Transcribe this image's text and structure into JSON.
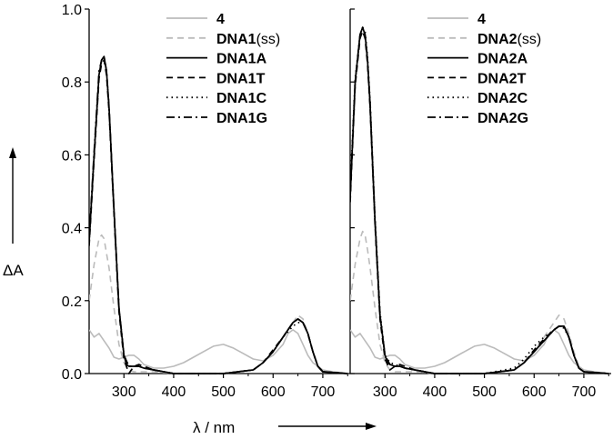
{
  "chart_data": [
    {
      "type": "line",
      "panel": "left",
      "xlabel": "λ / nm",
      "ylabel": "ΔA",
      "xlim": [
        230,
        755
      ],
      "ylim": [
        0,
        1.0
      ],
      "xticks": [
        300,
        400,
        500,
        600,
        700
      ],
      "yticks": [
        0.0,
        0.2,
        0.4,
        0.6,
        0.8,
        1.0
      ],
      "legend_position": "top-right",
      "series": [
        {
          "name": "4",
          "name_suffix": "",
          "color": "#bbbbbb",
          "dash": "solid",
          "x": [
            230,
            240,
            250,
            260,
            270,
            280,
            290,
            300,
            310,
            320,
            330,
            340,
            360,
            380,
            400,
            420,
            440,
            460,
            480,
            500,
            520,
            540,
            560,
            580,
            600,
            620,
            630,
            640,
            650,
            660,
            670,
            680,
            700,
            720,
            750
          ],
          "y": [
            0.12,
            0.1,
            0.11,
            0.09,
            0.07,
            0.045,
            0.04,
            0.045,
            0.05,
            0.05,
            0.04,
            0.025,
            0.015,
            0.015,
            0.02,
            0.03,
            0.045,
            0.06,
            0.075,
            0.08,
            0.07,
            0.055,
            0.04,
            0.035,
            0.05,
            0.08,
            0.11,
            0.12,
            0.11,
            0.08,
            0.05,
            0.03,
            0.01,
            0.005,
            0.0
          ]
        },
        {
          "name": "DNA1",
          "name_suffix": " (ss)",
          "color": "#bbbbbb",
          "dash": "dashed",
          "x": [
            230,
            240,
            250,
            255,
            260,
            265,
            270,
            280,
            290,
            300,
            310,
            320,
            340,
            360,
            400,
            500,
            560,
            580,
            600,
            620,
            640,
            650,
            660,
            670,
            680,
            690,
            700,
            750
          ],
          "y": [
            0.2,
            0.3,
            0.37,
            0.38,
            0.37,
            0.33,
            0.29,
            0.18,
            0.08,
            0.03,
            0.01,
            0.005,
            0.005,
            0.005,
            0.0,
            0.0,
            0.01,
            0.03,
            0.06,
            0.1,
            0.14,
            0.16,
            0.15,
            0.11,
            0.06,
            0.02,
            0.005,
            0.0
          ]
        },
        {
          "name": "DNA1A",
          "name_suffix": "",
          "color": "#000000",
          "dash": "solid",
          "x": [
            230,
            240,
            250,
            255,
            260,
            265,
            270,
            280,
            290,
            300,
            305,
            310,
            320,
            330,
            340,
            360,
            380,
            400,
            500,
            560,
            580,
            600,
            620,
            640,
            650,
            660,
            670,
            680,
            690,
            700,
            750
          ],
          "y": [
            0.36,
            0.6,
            0.82,
            0.86,
            0.87,
            0.83,
            0.73,
            0.45,
            0.18,
            0.05,
            0.025,
            0.02,
            0.02,
            0.02,
            0.015,
            0.01,
            0.005,
            0.0,
            0.0,
            0.01,
            0.03,
            0.06,
            0.1,
            0.14,
            0.15,
            0.14,
            0.11,
            0.06,
            0.02,
            0.005,
            0.0
          ]
        },
        {
          "name": "DNA1T",
          "name_suffix": "",
          "color": "#000000",
          "dash": "dashed",
          "x": [
            230,
            240,
            250,
            255,
            260,
            265,
            270,
            280,
            290,
            300,
            310,
            320,
            330,
            340,
            360,
            400,
            500,
            560,
            580,
            600,
            620,
            640,
            650,
            660,
            670,
            680,
            690,
            700,
            750
          ],
          "y": [
            0.35,
            0.59,
            0.81,
            0.85,
            0.86,
            0.82,
            0.72,
            0.44,
            0.17,
            0.04,
            0.0,
            0.02,
            0.025,
            0.02,
            0.01,
            0.0,
            0.0,
            0.01,
            0.03,
            0.065,
            0.1,
            0.14,
            0.15,
            0.14,
            0.11,
            0.06,
            0.02,
            0.005,
            0.0
          ]
        },
        {
          "name": "DNA1C",
          "name_suffix": "",
          "color": "#000000",
          "dash": "dotted",
          "x": [
            230,
            240,
            250,
            255,
            260,
            265,
            270,
            280,
            290,
            300,
            310,
            320,
            330,
            340,
            360,
            400,
            500,
            560,
            580,
            600,
            620,
            640,
            650,
            660,
            670,
            680,
            690,
            700,
            750
          ],
          "y": [
            0.36,
            0.6,
            0.82,
            0.86,
            0.87,
            0.83,
            0.73,
            0.45,
            0.18,
            0.05,
            0.02,
            0.02,
            0.02,
            0.015,
            0.01,
            0.0,
            0.0,
            0.01,
            0.03,
            0.06,
            0.1,
            0.13,
            0.14,
            0.14,
            0.11,
            0.06,
            0.02,
            0.005,
            0.0
          ]
        },
        {
          "name": "DNA1G",
          "name_suffix": "",
          "color": "#000000",
          "dash": "dashdot",
          "x": [
            230,
            240,
            250,
            255,
            260,
            265,
            270,
            280,
            290,
            300,
            310,
            320,
            330,
            340,
            360,
            400,
            500,
            560,
            580,
            600,
            620,
            640,
            650,
            660,
            670,
            680,
            690,
            700,
            750
          ],
          "y": [
            0.37,
            0.61,
            0.83,
            0.86,
            0.87,
            0.83,
            0.73,
            0.45,
            0.18,
            0.05,
            0.02,
            0.02,
            0.02,
            0.015,
            0.01,
            0.0,
            0.0,
            0.01,
            0.03,
            0.06,
            0.1,
            0.14,
            0.15,
            0.14,
            0.11,
            0.06,
            0.02,
            0.005,
            0.0
          ]
        }
      ]
    },
    {
      "type": "line",
      "panel": "right",
      "xlabel": "λ / nm",
      "ylabel": "ΔA",
      "xlim": [
        230,
        755
      ],
      "ylim": [
        0,
        1.0
      ],
      "xticks": [
        300,
        400,
        500,
        600,
        700
      ],
      "yticks": [
        0.0,
        0.2,
        0.4,
        0.6,
        0.8,
        1.0
      ],
      "legend_position": "top-right",
      "series": [
        {
          "name": "4",
          "name_suffix": "",
          "color": "#bbbbbb",
          "dash": "solid",
          "x": [
            230,
            240,
            250,
            260,
            270,
            280,
            290,
            300,
            310,
            320,
            330,
            340,
            360,
            380,
            400,
            420,
            440,
            460,
            480,
            500,
            520,
            540,
            560,
            580,
            600,
            620,
            630,
            640,
            650,
            660,
            670,
            680,
            700,
            720,
            750
          ],
          "y": [
            0.12,
            0.1,
            0.11,
            0.09,
            0.07,
            0.045,
            0.04,
            0.045,
            0.05,
            0.05,
            0.04,
            0.025,
            0.015,
            0.015,
            0.02,
            0.03,
            0.045,
            0.06,
            0.075,
            0.08,
            0.07,
            0.055,
            0.04,
            0.035,
            0.05,
            0.08,
            0.11,
            0.12,
            0.11,
            0.08,
            0.05,
            0.03,
            0.01,
            0.005,
            0.0
          ]
        },
        {
          "name": "DNA2",
          "name_suffix": " (ss)",
          "color": "#bbbbbb",
          "dash": "dashed",
          "x": [
            230,
            240,
            250,
            255,
            260,
            265,
            270,
            280,
            290,
            300,
            310,
            320,
            340,
            360,
            400,
            500,
            560,
            580,
            600,
            620,
            640,
            650,
            660,
            670,
            680,
            690,
            700,
            750
          ],
          "y": [
            0.2,
            0.3,
            0.37,
            0.39,
            0.38,
            0.34,
            0.29,
            0.18,
            0.08,
            0.03,
            0.01,
            0.005,
            0.005,
            0.005,
            0.0,
            0.0,
            0.01,
            0.03,
            0.06,
            0.1,
            0.14,
            0.16,
            0.15,
            0.11,
            0.06,
            0.02,
            0.005,
            0.0
          ]
        },
        {
          "name": "DNA2A",
          "name_suffix": "",
          "color": "#000000",
          "dash": "solid",
          "x": [
            230,
            240,
            250,
            255,
            260,
            265,
            270,
            280,
            290,
            300,
            305,
            310,
            320,
            330,
            340,
            360,
            380,
            400,
            500,
            560,
            580,
            600,
            620,
            640,
            650,
            660,
            670,
            680,
            690,
            700,
            750
          ],
          "y": [
            0.48,
            0.8,
            0.93,
            0.95,
            0.93,
            0.86,
            0.74,
            0.42,
            0.16,
            0.05,
            0.03,
            0.025,
            0.02,
            0.02,
            0.015,
            0.01,
            0.005,
            0.0,
            0.0,
            0.01,
            0.03,
            0.06,
            0.09,
            0.12,
            0.13,
            0.13,
            0.1,
            0.05,
            0.015,
            0.005,
            0.0
          ]
        },
        {
          "name": "DNA2T",
          "name_suffix": "",
          "color": "#000000",
          "dash": "dashed",
          "x": [
            230,
            240,
            250,
            255,
            260,
            265,
            270,
            280,
            290,
            300,
            310,
            320,
            330,
            340,
            360,
            400,
            500,
            560,
            580,
            600,
            620,
            640,
            650,
            660,
            670,
            680,
            690,
            700,
            750
          ],
          "y": [
            0.47,
            0.79,
            0.92,
            0.94,
            0.92,
            0.85,
            0.73,
            0.41,
            0.15,
            0.04,
            0.01,
            0.02,
            0.025,
            0.02,
            0.01,
            0.0,
            0.0,
            0.01,
            0.03,
            0.065,
            0.095,
            0.12,
            0.13,
            0.13,
            0.1,
            0.05,
            0.015,
            0.005,
            0.0
          ]
        },
        {
          "name": "DNA2C",
          "name_suffix": "",
          "color": "#000000",
          "dash": "dotted",
          "x": [
            230,
            240,
            250,
            255,
            260,
            265,
            270,
            280,
            290,
            300,
            310,
            320,
            330,
            340,
            360,
            400,
            500,
            560,
            580,
            600,
            620,
            640,
            650,
            660,
            670,
            680,
            690,
            700,
            750
          ],
          "y": [
            0.5,
            0.81,
            0.93,
            0.95,
            0.94,
            0.87,
            0.75,
            0.43,
            0.17,
            0.05,
            0.03,
            0.025,
            0.02,
            0.015,
            0.01,
            0.0,
            0.0,
            0.015,
            0.04,
            0.075,
            0.1,
            0.12,
            0.13,
            0.125,
            0.1,
            0.05,
            0.015,
            0.005,
            0.0
          ]
        },
        {
          "name": "DNA2G",
          "name_suffix": "",
          "color": "#000000",
          "dash": "dashdot",
          "x": [
            230,
            240,
            250,
            255,
            260,
            265,
            270,
            280,
            290,
            300,
            310,
            320,
            330,
            340,
            360,
            400,
            500,
            560,
            580,
            600,
            620,
            640,
            650,
            660,
            670,
            680,
            690,
            700,
            750
          ],
          "y": [
            0.49,
            0.8,
            0.93,
            0.95,
            0.93,
            0.86,
            0.74,
            0.42,
            0.16,
            0.05,
            0.025,
            0.02,
            0.02,
            0.015,
            0.01,
            0.0,
            0.0,
            0.01,
            0.03,
            0.06,
            0.09,
            0.12,
            0.13,
            0.13,
            0.1,
            0.05,
            0.015,
            0.005,
            0.0
          ]
        }
      ]
    }
  ]
}
